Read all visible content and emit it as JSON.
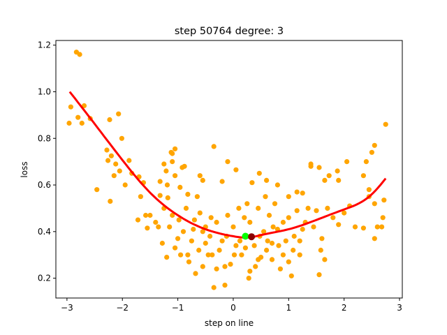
{
  "chart_data": {
    "type": "scatter",
    "title": "step 50764   degree: 3",
    "xlabel": "step on line",
    "ylabel": "loss",
    "xlim": [
      -3.2,
      3.05
    ],
    "ylim": [
      0.115,
      1.22
    ],
    "xticks": [
      -3,
      -2,
      -1,
      0,
      1,
      2,
      3
    ],
    "yticks": [
      0.2,
      0.4,
      0.6,
      0.8,
      1.0,
      1.2
    ],
    "grid": false,
    "colors": {
      "points": "#ffa500",
      "fit": "#ff0000",
      "marker_green": "#00ff00",
      "marker_dark": "#8b0000"
    },
    "fit_curve": {
      "name": "",
      "degree": 3,
      "x_range": [
        -2.95,
        2.75
      ],
      "samples": [
        [
          -2.95,
          1.0
        ],
        [
          -2.5,
          0.862
        ],
        [
          -2.0,
          0.707
        ],
        [
          -1.5,
          0.567
        ],
        [
          -1.0,
          0.47
        ],
        [
          -0.5,
          0.41
        ],
        [
          0.0,
          0.38
        ],
        [
          0.3,
          0.375
        ],
        [
          0.5,
          0.385
        ],
        [
          1.0,
          0.41
        ],
        [
          1.5,
          0.45
        ],
        [
          2.0,
          0.495
        ],
        [
          2.5,
          0.56
        ],
        [
          2.75,
          0.628
        ]
      ]
    },
    "markers": [
      {
        "name": "",
        "x": 0.22,
        "y": 0.38,
        "color": "#00ff00"
      },
      {
        "name": "",
        "x": 0.33,
        "y": 0.378,
        "color": "#8b0000"
      }
    ],
    "series": [
      {
        "name": "",
        "points": [
          [
            -2.83,
            1.17
          ],
          [
            -2.77,
            1.16
          ],
          [
            -2.93,
            0.935
          ],
          [
            -2.69,
            0.94
          ],
          [
            -2.8,
            0.89
          ],
          [
            -2.73,
            0.865
          ],
          [
            -2.96,
            0.865
          ],
          [
            -2.58,
            0.885
          ],
          [
            -2.23,
            0.88
          ],
          [
            -2.07,
            0.905
          ],
          [
            -2.01,
            0.8
          ],
          [
            -2.28,
            0.75
          ],
          [
            -2.2,
            0.725
          ],
          [
            -2.26,
            0.705
          ],
          [
            -2.12,
            0.69
          ],
          [
            -1.88,
            0.705
          ],
          [
            -2.05,
            0.66
          ],
          [
            -2.15,
            0.64
          ],
          [
            -1.83,
            0.65
          ],
          [
            -1.7,
            0.635
          ],
          [
            -1.95,
            0.6
          ],
          [
            -1.62,
            0.61
          ],
          [
            -2.46,
            0.58
          ],
          [
            -2.22,
            0.53
          ],
          [
            -1.67,
            0.55
          ],
          [
            -1.58,
            0.47
          ],
          [
            -1.72,
            0.45
          ],
          [
            -1.55,
            0.415
          ],
          [
            -1.1,
            0.735
          ],
          [
            -1.12,
            0.74
          ],
          [
            -1.05,
            0.755
          ],
          [
            -0.92,
            0.675
          ],
          [
            -1.25,
            0.69
          ],
          [
            -1.1,
            0.7
          ],
          [
            -0.88,
            0.68
          ],
          [
            -1.21,
            0.66
          ],
          [
            -1.05,
            0.64
          ],
          [
            -1.32,
            0.615
          ],
          [
            -1.19,
            0.6
          ],
          [
            -0.96,
            0.59
          ],
          [
            -1.32,
            0.555
          ],
          [
            -1.18,
            0.545
          ],
          [
            -0.82,
            0.56
          ],
          [
            -0.65,
            0.55
          ],
          [
            -0.55,
            0.62
          ],
          [
            -0.6,
            0.64
          ],
          [
            -0.35,
            0.765
          ],
          [
            -0.1,
            0.7
          ],
          [
            -0.2,
            0.615
          ],
          [
            0.05,
            0.665
          ],
          [
            0.34,
            0.61
          ],
          [
            0.47,
            0.65
          ],
          [
            0.6,
            0.62
          ],
          [
            0.8,
            0.6
          ],
          [
            1.0,
            0.55
          ],
          [
            1.15,
            0.57
          ],
          [
            1.25,
            0.565
          ],
          [
            1.4,
            0.68
          ],
          [
            1.4,
            0.69
          ],
          [
            1.55,
            0.675
          ],
          [
            1.73,
            0.64
          ],
          [
            1.88,
            0.66
          ],
          [
            1.9,
            0.62
          ],
          [
            2.05,
            0.7
          ],
          [
            1.65,
            0.62
          ],
          [
            2.35,
            0.64
          ],
          [
            2.4,
            0.7
          ],
          [
            2.5,
            0.74
          ],
          [
            2.55,
            0.77
          ],
          [
            2.75,
            0.86
          ],
          [
            2.45,
            0.58
          ],
          [
            2.45,
            0.55
          ],
          [
            2.55,
            0.52
          ],
          [
            2.72,
            0.535
          ],
          [
            2.7,
            0.46
          ],
          [
            2.6,
            0.42
          ],
          [
            2.68,
            0.42
          ],
          [
            2.55,
            0.37
          ],
          [
            2.35,
            0.415
          ],
          [
            2.2,
            0.42
          ],
          [
            2.1,
            0.51
          ],
          [
            2.0,
            0.48
          ],
          [
            1.9,
            0.43
          ],
          [
            1.8,
            0.46
          ],
          [
            1.7,
            0.5
          ],
          [
            1.6,
            0.37
          ],
          [
            1.58,
            0.32
          ],
          [
            1.55,
            0.215
          ],
          [
            1.65,
            0.28
          ],
          [
            1.45,
            0.42
          ],
          [
            1.3,
            0.44
          ],
          [
            1.2,
            0.36
          ],
          [
            1.1,
            0.38
          ],
          [
            1.05,
            0.21
          ],
          [
            1.0,
            0.27
          ],
          [
            0.9,
            0.3
          ],
          [
            0.85,
            0.24
          ],
          [
            0.8,
            0.41
          ],
          [
            0.7,
            0.35
          ],
          [
            0.6,
            0.32
          ],
          [
            0.5,
            0.29
          ],
          [
            0.4,
            0.25
          ],
          [
            0.3,
            0.23
          ],
          [
            0.28,
            0.2
          ],
          [
            0.15,
            0.3
          ],
          [
            0.05,
            0.34
          ],
          [
            -0.05,
            0.26
          ],
          [
            -0.15,
            0.17
          ],
          [
            -0.35,
            0.16
          ],
          [
            -0.3,
            0.24
          ],
          [
            -0.45,
            0.3
          ],
          [
            -0.55,
            0.25
          ],
          [
            -0.68,
            0.22
          ],
          [
            -0.8,
            0.27
          ],
          [
            -0.95,
            0.3
          ],
          [
            -1.05,
            0.33
          ],
          [
            -1.2,
            0.29
          ],
          [
            -1.28,
            0.35
          ],
          [
            -1.35,
            0.42
          ],
          [
            -1.4,
            0.44
          ],
          [
            -1.5,
            0.47
          ],
          [
            -1.25,
            0.5
          ],
          [
            -1.1,
            0.47
          ],
          [
            -0.98,
            0.45
          ],
          [
            -0.85,
            0.5
          ],
          [
            -0.7,
            0.45
          ],
          [
            -0.6,
            0.48
          ],
          [
            -0.5,
            0.42
          ],
          [
            -0.42,
            0.38
          ],
          [
            -0.3,
            0.44
          ],
          [
            -0.2,
            0.36
          ],
          [
            -0.1,
            0.47
          ],
          [
            0.0,
            0.42
          ],
          [
            0.1,
            0.5
          ],
          [
            0.2,
            0.46
          ],
          [
            0.3,
            0.44
          ],
          [
            0.45,
            0.5
          ],
          [
            0.55,
            0.4
          ],
          [
            0.65,
            0.47
          ],
          [
            0.75,
            0.52
          ],
          [
            0.9,
            0.44
          ],
          [
            1.0,
            0.46
          ],
          [
            1.15,
            0.49
          ],
          [
            1.25,
            0.41
          ],
          [
            1.35,
            0.5
          ],
          [
            1.5,
            0.49
          ],
          [
            -0.75,
            0.36
          ],
          [
            -0.62,
            0.32
          ],
          [
            -0.5,
            0.35
          ],
          [
            -0.38,
            0.3
          ],
          [
            -0.25,
            0.32
          ],
          [
            -0.12,
            0.38
          ],
          [
            0.02,
            0.3
          ],
          [
            0.12,
            0.36
          ],
          [
            0.22,
            0.33
          ],
          [
            0.38,
            0.34
          ],
          [
            0.48,
            0.38
          ],
          [
            0.62,
            0.36
          ],
          [
            0.72,
            0.42
          ],
          [
            0.82,
            0.34
          ],
          [
            0.95,
            0.36
          ],
          [
            1.08,
            0.32
          ],
          [
            -0.9,
            0.4
          ],
          [
            -1.0,
            0.37
          ],
          [
            -0.72,
            0.41
          ],
          [
            -0.4,
            0.46
          ],
          [
            0.25,
            0.52
          ],
          [
            0.58,
            0.55
          ],
          [
            -0.82,
            0.3
          ],
          [
            1.2,
            0.3
          ],
          [
            0.7,
            0.28
          ],
          [
            0.45,
            0.28
          ],
          [
            -0.15,
            0.25
          ],
          [
            -0.55,
            0.4
          ],
          [
            -1.15,
            0.42
          ]
        ]
      }
    ]
  }
}
